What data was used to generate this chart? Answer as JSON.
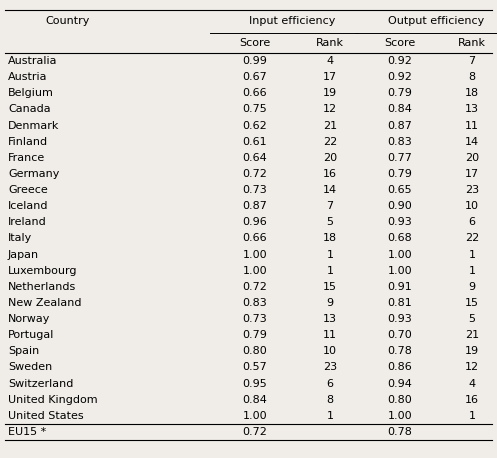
{
  "rows": [
    [
      "Australia",
      "0.99",
      "4",
      "0.92",
      "7"
    ],
    [
      "Austria",
      "0.67",
      "17",
      "0.92",
      "8"
    ],
    [
      "Belgium",
      "0.66",
      "19",
      "0.79",
      "18"
    ],
    [
      "Canada",
      "0.75",
      "12",
      "0.84",
      "13"
    ],
    [
      "Denmark",
      "0.62",
      "21",
      "0.87",
      "11"
    ],
    [
      "Finland",
      "0.61",
      "22",
      "0.83",
      "14"
    ],
    [
      "France",
      "0.64",
      "20",
      "0.77",
      "20"
    ],
    [
      "Germany",
      "0.72",
      "16",
      "0.79",
      "17"
    ],
    [
      "Greece",
      "0.73",
      "14",
      "0.65",
      "23"
    ],
    [
      "Iceland",
      "0.87",
      "7",
      "0.90",
      "10"
    ],
    [
      "Ireland",
      "0.96",
      "5",
      "0.93",
      "6"
    ],
    [
      "Italy",
      "0.66",
      "18",
      "0.68",
      "22"
    ],
    [
      "Japan",
      "1.00",
      "1",
      "1.00",
      "1"
    ],
    [
      "Luxembourg",
      "1.00",
      "1",
      "1.00",
      "1"
    ],
    [
      "Netherlands",
      "0.72",
      "15",
      "0.91",
      "9"
    ],
    [
      "New Zealand",
      "0.83",
      "9",
      "0.81",
      "15"
    ],
    [
      "Norway",
      "0.73",
      "13",
      "0.93",
      "5"
    ],
    [
      "Portugal",
      "0.79",
      "11",
      "0.70",
      "21"
    ],
    [
      "Spain",
      "0.80",
      "10",
      "0.78",
      "19"
    ],
    [
      "Sweden",
      "0.57",
      "23",
      "0.86",
      "12"
    ],
    [
      "Switzerland",
      "0.95",
      "6",
      "0.94",
      "4"
    ],
    [
      "United Kingdom",
      "0.84",
      "8",
      "0.80",
      "16"
    ],
    [
      "United States",
      "1.00",
      "1",
      "1.00",
      "1"
    ]
  ],
  "footer": [
    "EU15 *",
    "0.72",
    "",
    "0.78",
    ""
  ],
  "header1": "Country",
  "header2": "Input efficiency",
  "header3": "Output efficiency",
  "sub1": "Score",
  "sub2": "Rank",
  "sub3": "Score",
  "sub4": "Rank",
  "bg_color": "#f0ede8",
  "lc": "#000000",
  "tc": "#000000",
  "fs": 8.0
}
